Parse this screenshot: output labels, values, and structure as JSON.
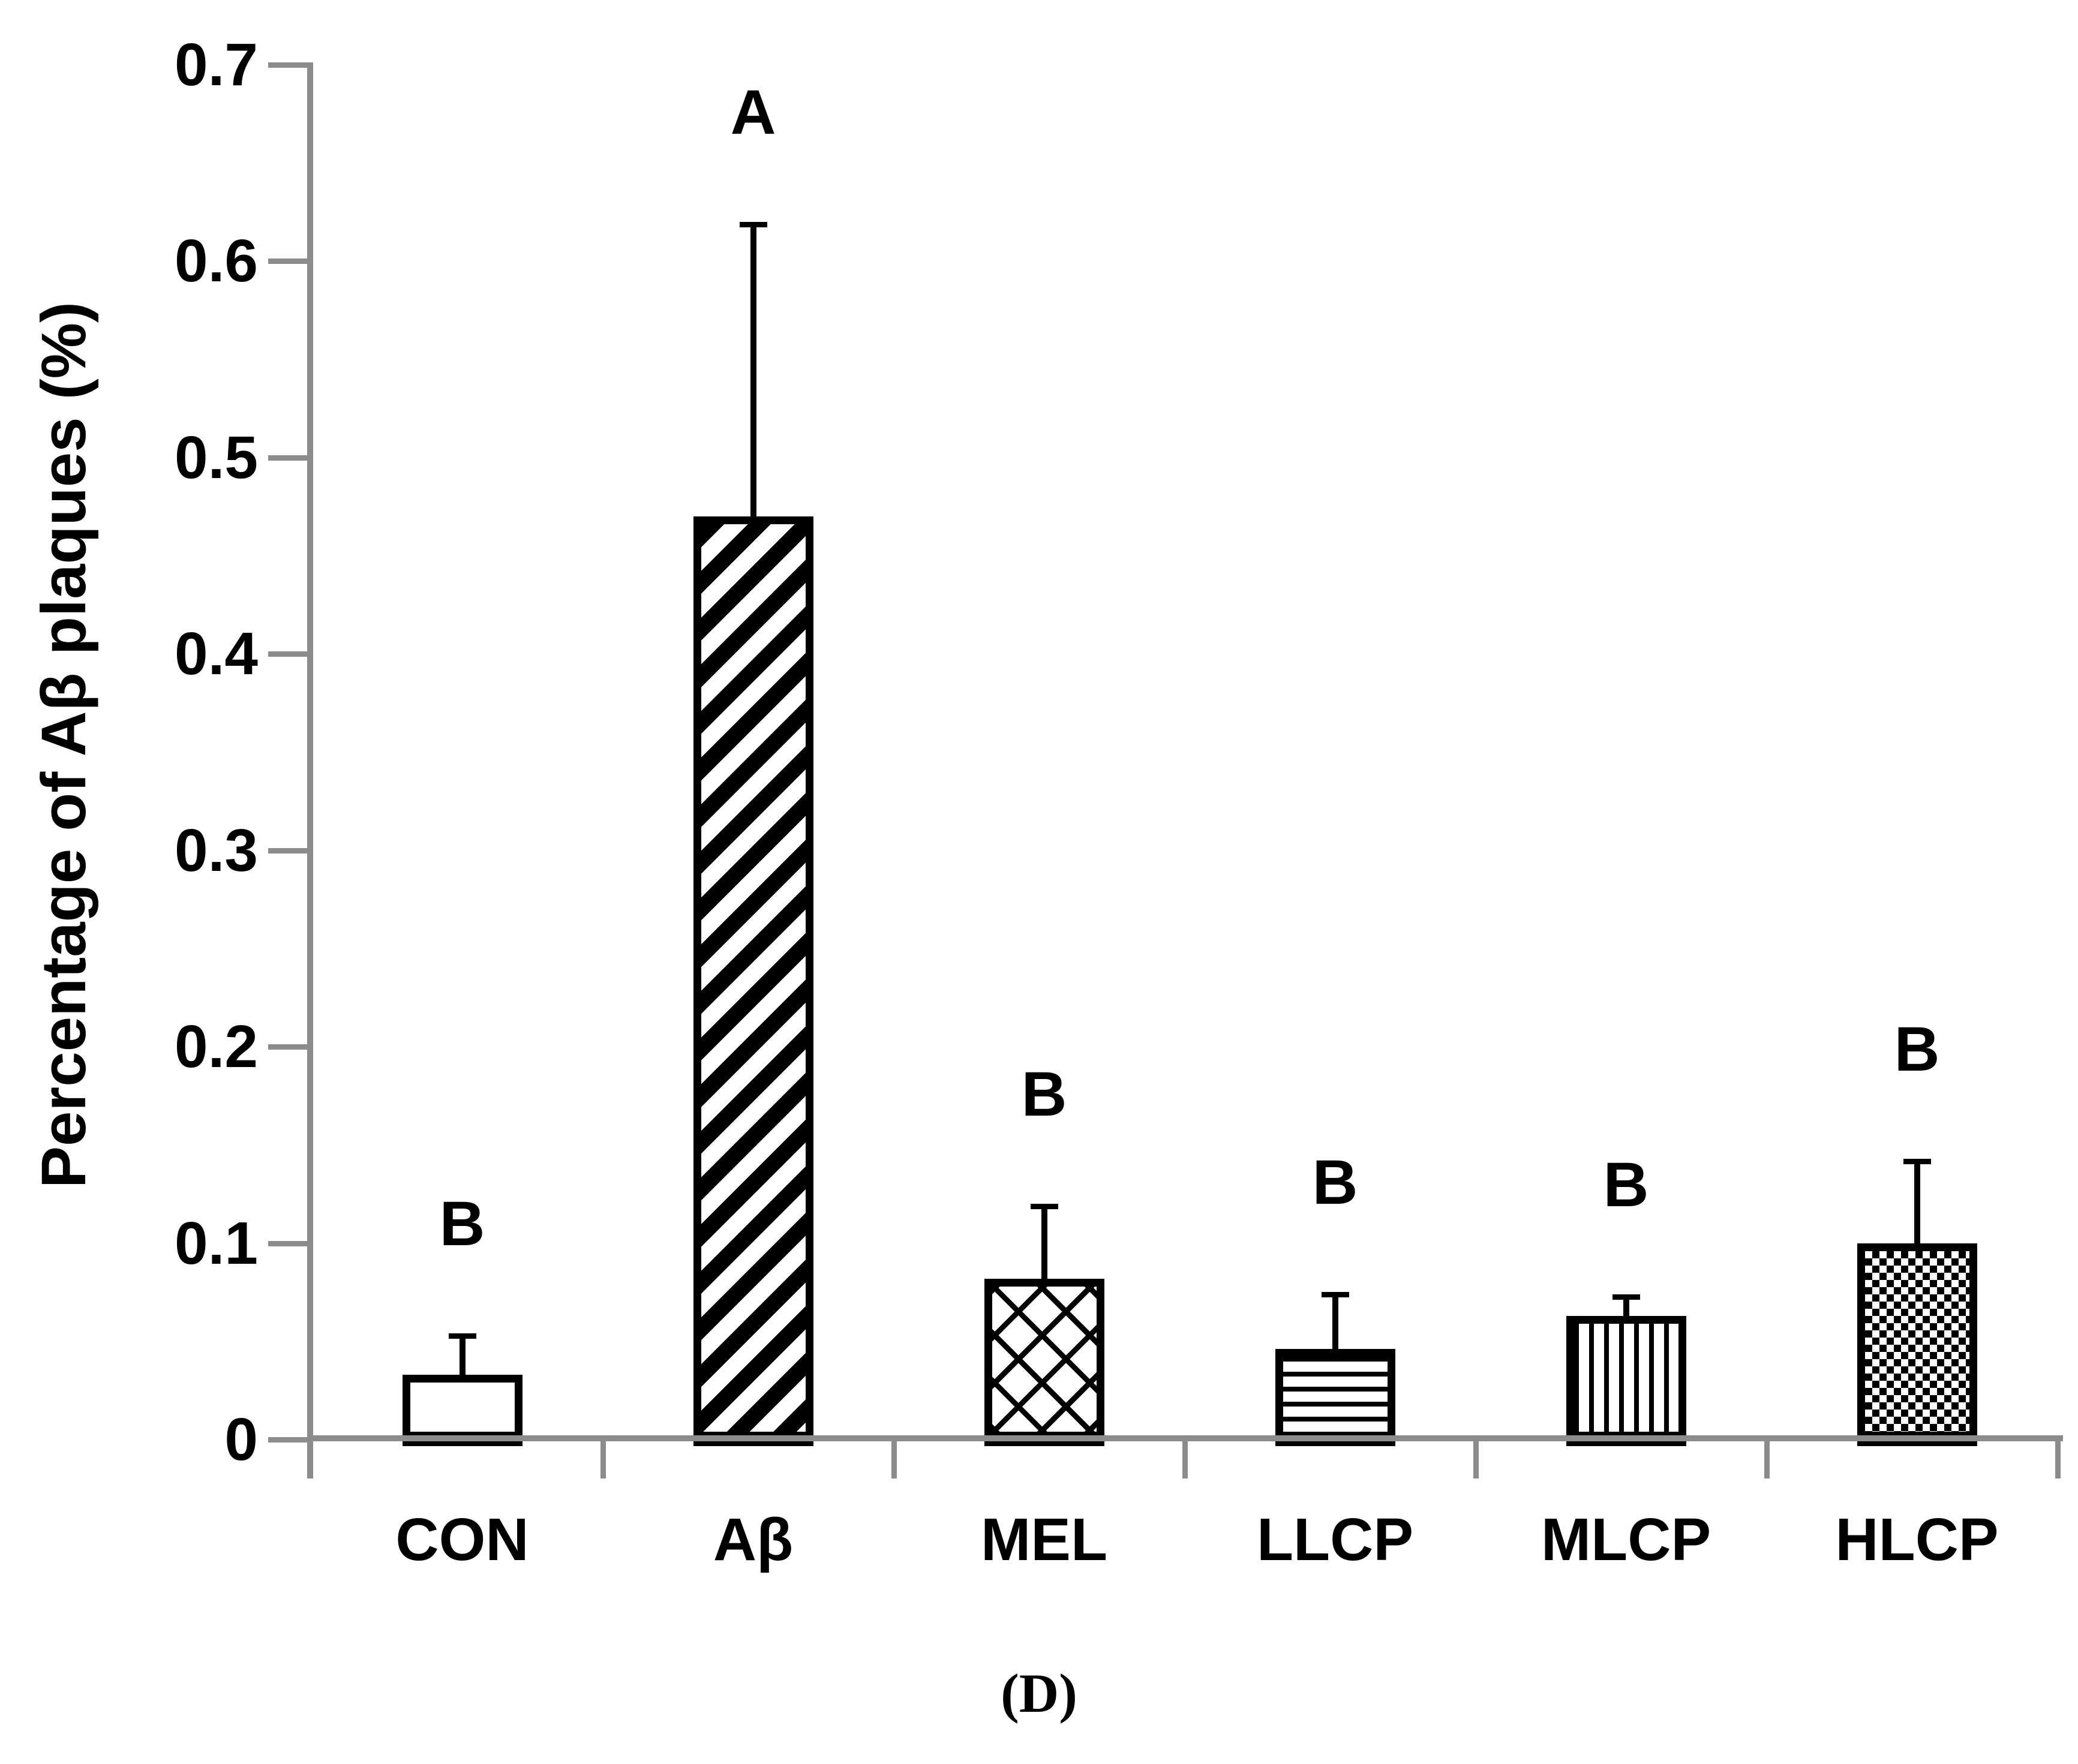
{
  "figure": {
    "caption": "(D)"
  },
  "chart_data": {
    "type": "bar",
    "title": "",
    "xlabel": "",
    "ylabel": "Percentage of Aβ plaques (%)",
    "ylim": [
      0,
      0.7
    ],
    "ytick_step": 0.1,
    "yticks": [
      "0.7",
      "0.6",
      "0.5",
      "0.4",
      "0.3",
      "0.2",
      "0.1",
      "0"
    ],
    "categories": [
      "CON",
      "Aβ",
      "MEL",
      "LLCP",
      "MLCP",
      "HLCP"
    ],
    "values": [
      0.033,
      0.47,
      0.082,
      0.046,
      0.063,
      0.1
    ],
    "error_upper": [
      0.021,
      0.15,
      0.038,
      0.029,
      0.011,
      0.043
    ],
    "sig_letters": [
      "B",
      "A",
      "B",
      "B",
      "B",
      "B"
    ],
    "bar_patterns": [
      "plain",
      "diagonal-stripes",
      "diamond-crosshatch",
      "horizontal-lines",
      "vertical-lines",
      "checkerboard"
    ],
    "bar_fill": "#ffffff",
    "bar_edge": "#000000",
    "axis_color": "#8c8c8c",
    "grid": false,
    "legend": null
  }
}
